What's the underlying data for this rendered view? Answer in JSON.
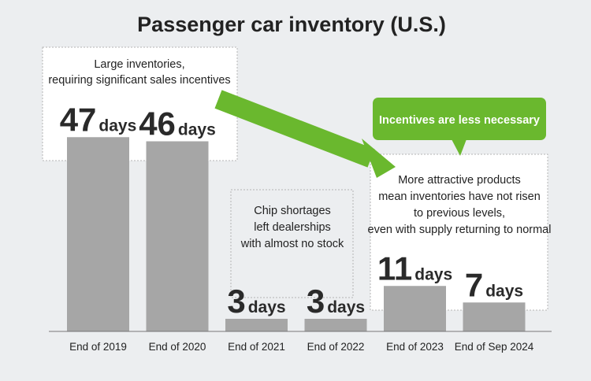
{
  "chart_data": {
    "type": "bar",
    "title": "Passenger car inventory (U.S.)",
    "categories": [
      "End of 2019",
      "End of 2020",
      "End of 2021",
      "End of 2022",
      "End of 2023",
      "End of Sep 2024"
    ],
    "values": [
      47,
      46,
      3,
      3,
      11,
      7
    ],
    "value_unit": "days",
    "ylim": [
      0,
      60
    ],
    "grid": false,
    "bar_color": "#a6a6a6",
    "annotations": {
      "large_inventories": [
        "Large inventories,",
        "requiring significant sales incentives"
      ],
      "chip_shortages": [
        "Chip shortages",
        "left dealerships",
        "with almost no stock"
      ],
      "attractive_products": [
        "More attractive products",
        "mean inventories have not risen",
        "to previous levels,",
        "even with supply returning to normal"
      ],
      "callout": "Incentives are less necessary"
    },
    "accent_color": "#6ab82e"
  }
}
